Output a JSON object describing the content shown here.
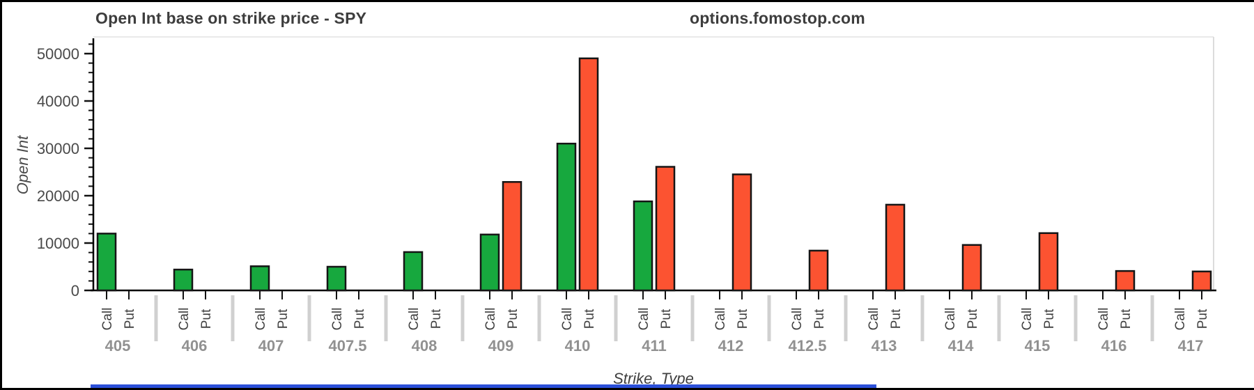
{
  "header": {
    "title": "Open Int base on strike price - SPY",
    "site": "options.fomostop.com"
  },
  "chart_data": {
    "type": "bar",
    "title": "Open Int base on strike price - SPY",
    "source_label": "options.fomostop.com",
    "xlabel": "Strike, Type",
    "ylabel": "Open Int",
    "categories": [
      "405",
      "406",
      "407",
      "407.5",
      "408",
      "409",
      "410",
      "411",
      "412",
      "412.5",
      "413",
      "414",
      "415",
      "416",
      "417"
    ],
    "bar_types": [
      "Call",
      "Put"
    ],
    "series": [
      {
        "name": "Call",
        "color": "#17a83e",
        "values": [
          12000,
          4400,
          5100,
          5000,
          8100,
          11800,
          31000,
          18800,
          0,
          0,
          0,
          0,
          0,
          0,
          0
        ]
      },
      {
        "name": "Put",
        "color": "#fc5331",
        "values": [
          0,
          0,
          0,
          0,
          0,
          22900,
          49000,
          26100,
          24500,
          8400,
          18100,
          9600,
          12100,
          4100,
          4000
        ]
      }
    ],
    "ylim": [
      0,
      53500
    ],
    "yticks": [
      0,
      10000,
      20000,
      30000,
      40000,
      50000
    ],
    "minor_tick_step": 2000,
    "grid": false,
    "legend": "none",
    "bar_outline_color": "#151515",
    "accent_bottom_bar_color": "#2b50d9"
  }
}
